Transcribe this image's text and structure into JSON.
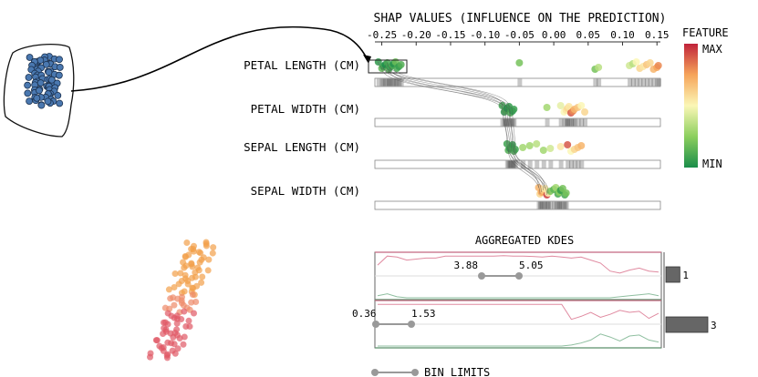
{
  "title": "SHAP VALUES (INFLUENCE ON THE PREDICTION)",
  "kde_title": "AGGREGATED KDES",
  "legend": {
    "title": "FEATURE",
    "max_label": "MAX",
    "min_label": "MIN",
    "colors": [
      "#1a8d4a",
      "#8ccf5e",
      "#fbf7b6",
      "#f6a45a",
      "#c0233a"
    ]
  },
  "bin_limits_label": "BIN LIMITS",
  "chart_data": [
    {
      "type": "scatter",
      "title": "SHAP VALUES (INFLUENCE ON THE PREDICTION)",
      "xlim": [
        -0.26,
        0.155
      ],
      "x_ticks": [
        -0.25,
        -0.2,
        -0.15,
        -0.1,
        -0.05,
        0.0,
        0.05,
        0.1,
        0.15
      ],
      "tick_labels": [
        "-0.25",
        "-0.20",
        "-0.15",
        "-0.10",
        "-0.05",
        "0.00",
        "0.05",
        "0.10",
        "0.15"
      ],
      "features": [
        {
          "name": "PETAL LENGTH (CM)",
          "points": [
            [
              -0.255,
              0.05
            ],
            [
              -0.25,
              0.15
            ],
            [
              -0.248,
              0.08
            ],
            [
              -0.245,
              0.0
            ],
            [
              -0.242,
              0.1
            ],
            [
              -0.24,
              0.12
            ],
            [
              -0.238,
              0.06
            ],
            [
              -0.235,
              0.1
            ],
            [
              -0.233,
              0.02
            ],
            [
              -0.23,
              0.18
            ],
            [
              -0.228,
              0.1
            ],
            [
              -0.225,
              0.06
            ],
            [
              -0.222,
              0.12
            ],
            [
              -0.05,
              0.2
            ],
            [
              0.06,
              0.2
            ],
            [
              0.065,
              0.35
            ],
            [
              0.11,
              0.4
            ],
            [
              0.115,
              0.35
            ],
            [
              0.12,
              0.5
            ],
            [
              0.125,
              0.6
            ],
            [
              0.13,
              0.55
            ],
            [
              0.135,
              0.65
            ],
            [
              0.14,
              0.6
            ],
            [
              0.145,
              0.7
            ],
            [
              0.15,
              0.75
            ],
            [
              0.152,
              0.8
            ]
          ]
        },
        {
          "name": "PETAL WIDTH (CM)",
          "points": [
            [
              -0.075,
              0.08
            ],
            [
              -0.072,
              0.05
            ],
            [
              -0.07,
              0.1
            ],
            [
              -0.068,
              0.02
            ],
            [
              -0.065,
              0.06
            ],
            [
              -0.063,
              0.1
            ],
            [
              -0.06,
              0.04
            ],
            [
              -0.058,
              0.07
            ],
            [
              -0.01,
              0.3
            ],
            [
              0.01,
              0.45
            ],
            [
              0.015,
              0.5
            ],
            [
              0.018,
              0.55
            ],
            [
              0.02,
              0.6
            ],
            [
              0.022,
              0.55
            ],
            [
              0.025,
              0.9
            ],
            [
              0.028,
              0.8
            ],
            [
              0.03,
              0.7
            ],
            [
              0.035,
              0.65
            ],
            [
              0.04,
              0.5
            ],
            [
              0.045,
              0.6
            ]
          ]
        },
        {
          "name": "SEPAL LENGTH (CM)",
          "points": [
            [
              -0.068,
              0.08
            ],
            [
              -0.066,
              0.12
            ],
            [
              -0.064,
              0.05
            ],
            [
              -0.062,
              0.1
            ],
            [
              -0.06,
              0.06
            ],
            [
              -0.058,
              0.1
            ],
            [
              -0.056,
              0.08
            ],
            [
              -0.045,
              0.3
            ],
            [
              -0.035,
              0.3
            ],
            [
              -0.025,
              0.35
            ],
            [
              -0.015,
              0.3
            ],
            [
              -0.005,
              0.4
            ],
            [
              0.01,
              0.55
            ],
            [
              0.02,
              0.9
            ],
            [
              0.025,
              0.5
            ],
            [
              0.03,
              0.6
            ],
            [
              0.035,
              0.65
            ],
            [
              0.04,
              0.7
            ]
          ]
        },
        {
          "name": "SEPAL WIDTH (CM)",
          "points": [
            [
              -0.022,
              0.7
            ],
            [
              -0.02,
              0.6
            ],
            [
              -0.018,
              0.75
            ],
            [
              -0.015,
              0.65
            ],
            [
              -0.013,
              0.55
            ],
            [
              -0.01,
              0.95
            ],
            [
              -0.008,
              0.5
            ],
            [
              -0.005,
              0.2
            ],
            [
              0.0,
              0.15
            ],
            [
              0.003,
              0.3
            ],
            [
              0.006,
              0.1
            ],
            [
              0.008,
              0.25
            ],
            [
              0.01,
              0.05
            ],
            [
              0.013,
              0.2
            ],
            [
              0.016,
              0.1
            ],
            [
              0.018,
              0.2
            ]
          ]
        }
      ]
    },
    {
      "type": "area",
      "title": "AGGREGATED KDES",
      "bins": [
        {
          "label_min": "3.88",
          "label_max": "5.05",
          "count": 1,
          "kde_red": [
            0.55,
            0.1,
            0.15,
            0.3,
            0.25,
            0.2,
            0.2,
            0.1,
            0.1,
            0.1,
            0.1,
            0.1,
            0.1,
            0.08,
            0.1,
            0.1,
            0.12,
            0.15,
            0.1,
            0.15,
            0.2,
            0.15,
            0.3,
            0.45,
            0.85,
            0.95,
            0.8,
            0.7,
            0.85,
            0.9
          ],
          "kde_green": [
            0.1,
            0.2,
            0.05,
            0.0,
            0.0,
            0.0,
            0.0,
            0.0,
            0.0,
            0.0,
            0.0,
            0.0,
            0.0,
            0.0,
            0.0,
            0.0,
            0.0,
            0.0,
            0.0,
            0.0,
            0.0,
            0.0,
            0.0,
            0.0,
            0.0,
            0.05,
            0.1,
            0.15,
            0.2,
            0.1
          ]
        },
        {
          "label_min": "0.36",
          "label_max": "1.53",
          "count": 3,
          "kde_red": [
            0.1,
            0.1,
            0.1,
            0.1,
            0.1,
            0.1,
            0.1,
            0.1,
            0.1,
            0.1,
            0.1,
            0.1,
            0.1,
            0.1,
            0.1,
            0.1,
            0.1,
            0.1,
            0.1,
            0.1,
            0.85,
            0.7,
            0.5,
            0.75,
            0.6,
            0.4,
            0.5,
            0.45,
            0.8,
            0.55
          ],
          "kde_green": [
            0.0,
            0.0,
            0.0,
            0.0,
            0.0,
            0.0,
            0.0,
            0.0,
            0.0,
            0.0,
            0.0,
            0.0,
            0.0,
            0.0,
            0.0,
            0.0,
            0.0,
            0.0,
            0.0,
            0.0,
            0.05,
            0.15,
            0.3,
            0.6,
            0.45,
            0.25,
            0.5,
            0.55,
            0.3,
            0.2
          ]
        }
      ],
      "count_max": 3
    }
  ]
}
